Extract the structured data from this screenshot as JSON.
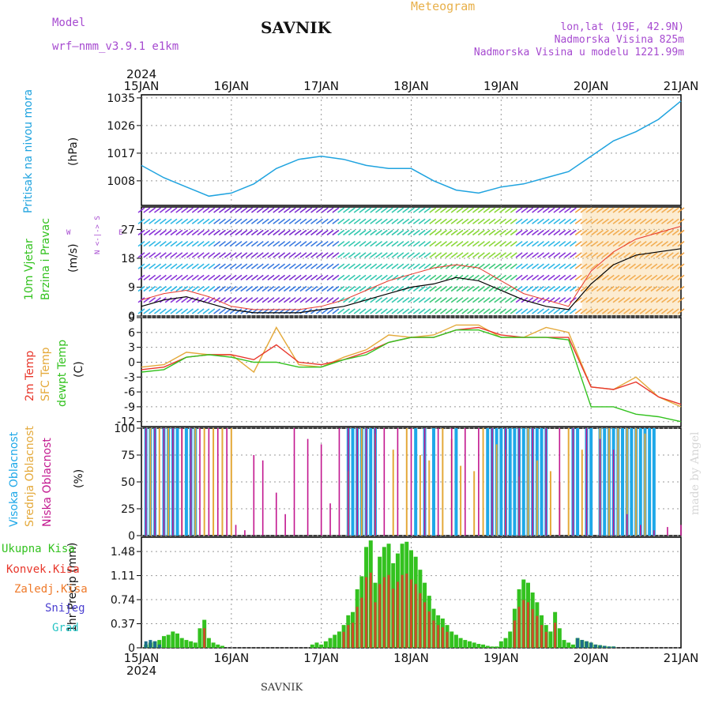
{
  "header": {
    "model_label": "Model",
    "model_name": "wrf—nmm_v3.9.1  e1km",
    "station": "SAVNIK",
    "product": "Meteogram",
    "lonlat": "lon,lat (19E, 42.9N)",
    "elevation": "Nadmorska Visina 825m",
    "model_elevation": "Nadmorska Visina u modelu 1221.99m",
    "footer_station": "SAVNIK",
    "watermark": "made by Angel"
  },
  "time_axis": {
    "year": "2024",
    "ticks": [
      "15JAN",
      "16JAN",
      "17JAN",
      "18JAN",
      "19JAN",
      "20JAN",
      "21JAN"
    ]
  },
  "panels": {
    "pressure": {
      "label": "Pritisak na nivou mora",
      "unit": "(hPa)"
    },
    "wind": {
      "label1": "10m Vjetar",
      "label2": "Brzina i Pravac",
      "unit": "(m/s)",
      "compass_ns": "N <-|-> S",
      "compass_w": "W",
      "compass_e": "E"
    },
    "temp": {
      "label1": "2m Temp",
      "label2": "SFC Temp",
      "label3": "dewpt Temp",
      "unit": "(C)"
    },
    "cloud": {
      "label1": "Visoka Oblacnost",
      "label2": "Srednja Oblacnost",
      "label3": "Niska Oblacnost",
      "unit": "(%)"
    },
    "precip": {
      "unit": "1hr Precip (mm)",
      "legend": [
        "Ukupna Kisa",
        "Konvek.Kisa",
        "Zaledj.Kisa",
        "Snijeg",
        "Grad"
      ]
    }
  },
  "colors": {
    "pressure": "#1fa3df",
    "t2m": "#e8372b",
    "tsfc": "#e4a93a",
    "dewpt": "#33c21f",
    "high_cloud": "#1ea8e8",
    "mid_cloud": "#e4a93a",
    "low_cloud": "#c2178f",
    "total_rain": "#33c21f",
    "convective": "#e8372b",
    "freezing": "#ef7a2a",
    "snow": "#4a3fd0",
    "hail": "#27c4c4",
    "header_purple": "#a64ad0",
    "header_orange": "#e8b04a"
  },
  "chart_data": [
    {
      "type": "line",
      "title": "Pritisak na nivou mora",
      "ylabel": "(hPa)",
      "ylim": [
        1000,
        1036
      ],
      "yticks": [
        1008,
        1017,
        1026,
        1035
      ],
      "x_days": [
        0,
        0.25,
        0.5,
        0.75,
        1.0,
        1.25,
        1.5,
        1.75,
        2.0,
        2.25,
        2.5,
        2.75,
        3.0,
        3.25,
        3.5,
        3.75,
        4.0,
        4.25,
        4.5,
        4.75,
        5.0,
        5.25,
        5.5,
        5.75,
        6.0
      ],
      "series": [
        {
          "values": [
            1013,
            1009,
            1006,
            1003,
            1004,
            1007,
            1012,
            1015,
            1016,
            1015,
            1013,
            1012,
            1012,
            1008,
            1005,
            1004,
            1006,
            1007,
            1009,
            1011,
            1016,
            1021,
            1024,
            1028,
            1034
          ]
        }
      ]
    },
    {
      "type": "line",
      "title": "10m Vjetar Brzina i Pravac",
      "ylabel": "(m/s)",
      "ylim": [
        0,
        34
      ],
      "yticks": [
        0,
        9,
        18,
        27
      ],
      "x_days": [
        0,
        0.25,
        0.5,
        0.75,
        1.0,
        1.25,
        1.5,
        1.75,
        2.0,
        2.25,
        2.5,
        2.75,
        3.0,
        3.25,
        3.5,
        3.75,
        4.0,
        4.25,
        4.5,
        4.75,
        5.0,
        5.25,
        5.5,
        5.75,
        6.0
      ],
      "series": [
        {
          "values": [
            3,
            5,
            6,
            4,
            2,
            1,
            1,
            1,
            2,
            3,
            5,
            7,
            9,
            10,
            12,
            11,
            8,
            5,
            3,
            2,
            10,
            16,
            19,
            20,
            21
          ]
        },
        {
          "values": [
            5,
            7,
            8,
            6,
            3,
            2,
            2,
            2,
            3,
            5,
            8,
            11,
            13,
            15,
            16,
            15,
            11,
            7,
            5,
            3,
            14,
            20,
            24,
            26,
            28
          ]
        }
      ]
    },
    {
      "type": "line",
      "title": "2m Temp / SFC Temp / dewpt Temp",
      "ylabel": "(C)",
      "ylim": [
        -13,
        9
      ],
      "yticks": [
        -12,
        -9,
        -6,
        -3,
        0,
        3,
        6,
        9
      ],
      "x_days": [
        0,
        0.25,
        0.5,
        0.75,
        1.0,
        1.25,
        1.5,
        1.75,
        2.0,
        2.25,
        2.5,
        2.75,
        3.0,
        3.25,
        3.5,
        3.75,
        4.0,
        4.25,
        4.5,
        4.75,
        5.0,
        5.25,
        5.5,
        5.75,
        6.0
      ],
      "series": [
        {
          "name": "2m Temp",
          "values": [
            -1.5,
            -1,
            1,
            1.5,
            1.5,
            0.5,
            3.5,
            0,
            -0.5,
            0.5,
            2,
            4,
            5,
            5,
            6.5,
            7,
            5.5,
            5,
            5,
            5,
            -5,
            -5.5,
            -4,
            -7,
            -8.5
          ]
        },
        {
          "name": "SFC Temp",
          "values": [
            -1,
            -0.5,
            2,
            1.5,
            1.5,
            -2,
            7,
            -0.5,
            -1,
            1,
            2.5,
            5.5,
            5,
            5.5,
            7.5,
            7.5,
            5,
            5,
            7,
            6,
            -5,
            -5.5,
            -3,
            -7,
            -9
          ]
        },
        {
          "name": "dewpt Temp",
          "values": [
            -2,
            -1.5,
            1,
            1.5,
            1,
            0,
            0,
            -1,
            -1,
            0.5,
            1.5,
            4,
            5,
            5,
            6.5,
            6.5,
            5,
            5,
            5,
            4.5,
            -9,
            -9,
            -10.5,
            -11,
            -12
          ]
        }
      ]
    },
    {
      "type": "bar",
      "title": "Oblacnost",
      "ylabel": "(%)",
      "ylim": [
        0,
        100
      ],
      "yticks": [
        0,
        25,
        50,
        75,
        100
      ],
      "high_bar_days": [
        0.05,
        0.1,
        0.15,
        0.25,
        0.3,
        0.35,
        0.4,
        0.5,
        0.55,
        0.6,
        2.3,
        2.35,
        2.4,
        2.45,
        2.5,
        2.55,
        2.6,
        3.05,
        3.15,
        3.25,
        3.5,
        3.85,
        3.9,
        3.95,
        4.0,
        4.05,
        4.1,
        4.15,
        4.2,
        4.25,
        4.3,
        4.35,
        4.4,
        4.45,
        4.5,
        4.8,
        4.85,
        4.95,
        5.0,
        5.1,
        5.15,
        5.2,
        5.25,
        5.3,
        5.35,
        5.4,
        5.45,
        5.5,
        5.55,
        5.6,
        5.65,
        5.7
      ],
      "mid_bar_days": [
        0.1,
        0.2,
        0.3,
        0.45,
        0.6,
        0.7,
        0.8,
        0.9,
        1.0,
        2.3,
        2.45,
        2.6,
        2.8,
        2.95,
        3.1,
        3.2,
        3.35,
        3.45,
        3.55,
        3.7,
        3.8,
        3.95,
        4.05,
        4.2,
        4.3,
        4.4,
        4.55,
        4.65,
        4.75,
        4.9,
        5.1,
        5.2,
        5.3,
        5.4,
        5.5,
        5.6
      ],
      "low_bar_days": [
        0.05,
        0.15,
        0.25,
        0.35,
        0.45,
        0.55,
        0.65,
        0.75,
        0.85,
        0.95,
        1.05,
        1.15,
        1.25,
        1.35,
        1.5,
        1.6,
        1.7,
        1.85,
        2.0,
        2.1,
        2.2,
        2.3,
        2.4,
        2.5,
        2.6,
        2.7,
        2.85,
        3.0,
        3.15,
        3.3,
        3.45,
        3.6,
        3.75,
        3.9,
        4.05,
        4.2,
        4.35,
        4.5,
        4.65,
        4.8,
        4.95,
        5.1,
        5.25,
        5.4,
        5.55,
        5.7,
        5.85,
        6.0
      ]
    },
    {
      "type": "bar",
      "title": "1hr Precip",
      "ylabel": "(mm)",
      "ylim": [
        0,
        1.7
      ],
      "yticks": [
        0,
        0.37,
        0.74,
        1.11,
        1.48
      ],
      "x_days": [
        0.05,
        0.1,
        0.15,
        0.2,
        0.25,
        0.3,
        0.35,
        0.4,
        0.45,
        0.5,
        0.55,
        0.6,
        0.65,
        0.7,
        0.75,
        0.8,
        0.85,
        0.9,
        1.9,
        1.95,
        2.0,
        2.05,
        2.1,
        2.15,
        2.2,
        2.25,
        2.3,
        2.35,
        2.4,
        2.45,
        2.5,
        2.55,
        2.6,
        2.65,
        2.7,
        2.75,
        2.8,
        2.85,
        2.9,
        2.95,
        3.0,
        3.05,
        3.1,
        3.15,
        3.2,
        3.25,
        3.3,
        3.35,
        3.4,
        3.45,
        3.5,
        3.55,
        3.6,
        3.65,
        3.7,
        3.75,
        3.8,
        3.85,
        3.9,
        3.95,
        4.0,
        4.05,
        4.1,
        4.15,
        4.2,
        4.25,
        4.3,
        4.35,
        4.4,
        4.45,
        4.5,
        4.55,
        4.6,
        4.65,
        4.7,
        4.75,
        4.8,
        4.85,
        4.9,
        4.95,
        5.0,
        5.05,
        5.1,
        5.15,
        5.2,
        5.25
      ],
      "values": [
        0.05,
        0.08,
        0.1,
        0.12,
        0.18,
        0.2,
        0.25,
        0.22,
        0.15,
        0.12,
        0.1,
        0.08,
        0.3,
        0.43,
        0.15,
        0.08,
        0.05,
        0.03,
        0.05,
        0.08,
        0.05,
        0.1,
        0.15,
        0.2,
        0.25,
        0.35,
        0.5,
        0.55,
        0.9,
        1.1,
        1.55,
        1.65,
        1.0,
        1.4,
        1.55,
        1.6,
        1.3,
        1.45,
        1.6,
        1.63,
        1.5,
        1.4,
        1.2,
        1.0,
        0.8,
        0.6,
        0.5,
        0.45,
        0.35,
        0.25,
        0.2,
        0.15,
        0.12,
        0.1,
        0.08,
        0.06,
        0.05,
        0.03,
        0.02,
        0.02,
        0.1,
        0.15,
        0.25,
        0.6,
        0.9,
        1.05,
        1.0,
        0.85,
        0.7,
        0.5,
        0.35,
        0.25,
        0.55,
        0.3,
        0.12,
        0.08,
        0.05,
        0.15,
        0.12,
        0.1,
        0.08,
        0.05,
        0.04,
        0.03,
        0.02,
        0.02
      ],
      "snow_values": [
        0.1,
        0.12,
        0.1,
        0.05,
        0,
        0,
        0,
        0,
        0,
        0,
        0,
        0,
        0,
        0,
        0,
        0,
        0,
        0,
        0,
        0,
        0,
        0,
        0,
        0,
        0,
        0,
        0,
        0,
        0,
        0,
        0,
        0,
        0,
        0,
        0,
        0,
        0,
        0,
        0,
        0,
        0,
        0,
        0,
        0,
        0,
        0,
        0,
        0,
        0,
        0,
        0,
        0,
        0,
        0,
        0,
        0,
        0,
        0,
        0,
        0,
        0,
        0,
        0,
        0,
        0,
        0,
        0,
        0,
        0,
        0,
        0,
        0,
        0,
        0,
        0,
        0,
        0,
        0.15,
        0.12,
        0.1,
        0.08,
        0.05,
        0.04,
        0.03,
        0.02,
        0.02
      ]
    }
  ]
}
